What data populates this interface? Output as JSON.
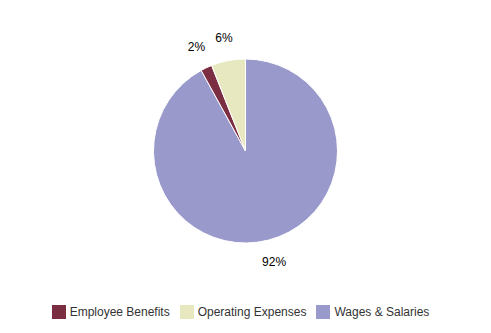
{
  "chart_data": {
    "type": "pie",
    "categories": [
      "Wages & Salaries",
      "Employee Benefits",
      "Operating Expenses"
    ],
    "values": [
      92,
      2,
      6
    ],
    "value_labels": [
      "92%",
      "2%",
      "6%"
    ],
    "colors": [
      "#9999cc",
      "#7b2d42",
      "#e8e8c0"
    ],
    "data_labels": true,
    "legend": "bottom"
  }
}
